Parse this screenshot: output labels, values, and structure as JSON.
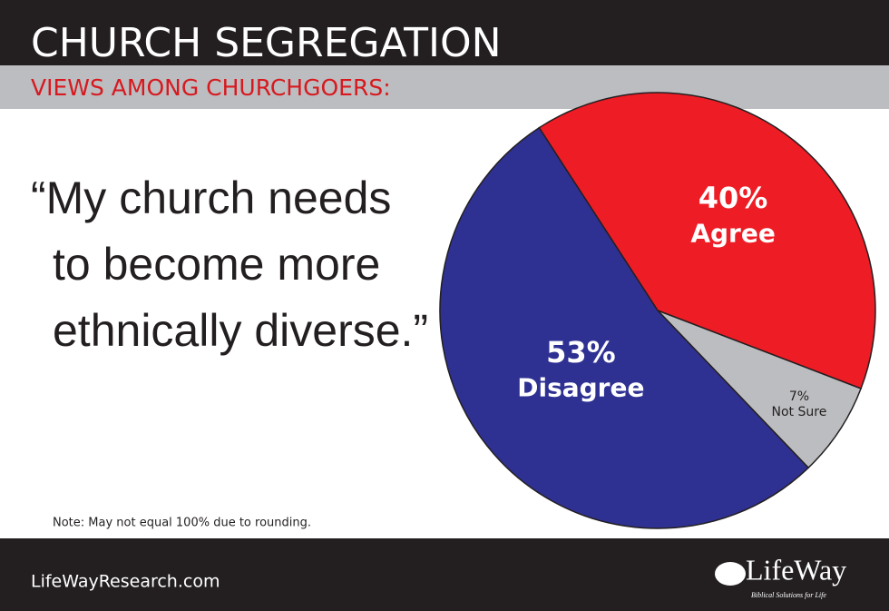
{
  "chart_data": {
    "type": "pie",
    "title": "CHURCH SEGREGATION",
    "subtitle": "VIEWS AMONG CHURCHGOERS:",
    "quote": [
      "“My church needs",
      "to become more",
      "ethnically diverse.”"
    ],
    "categories": [
      "Agree",
      "Not Sure",
      "Disagree"
    ],
    "values": [
      40,
      7,
      53
    ],
    "value_labels": [
      "40%",
      "7%",
      "53%"
    ],
    "colors": [
      "#ee1c25",
      "#bcbdc0",
      "#2e3192"
    ],
    "note": "Note: May not equal 100% due to rounding.",
    "source": "LifeWayResearch.com",
    "logo": "LifeWay",
    "tagline": "Biblical Solutions for Life"
  }
}
